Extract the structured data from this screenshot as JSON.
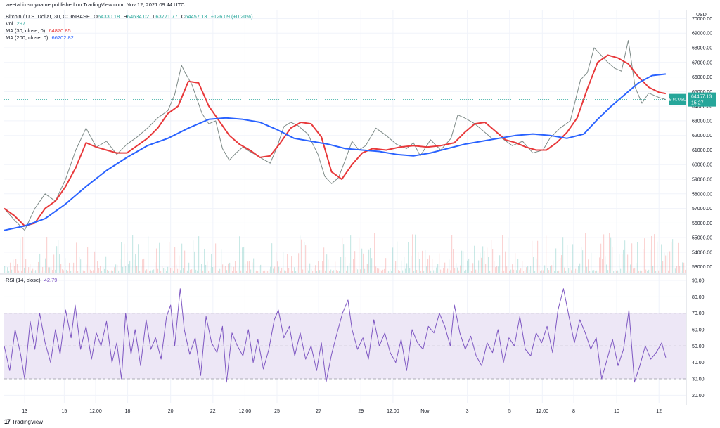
{
  "header": {
    "publisher": "weetabixismyname published on TradingView.com, Nov 12, 2021 09:44 UTC"
  },
  "footer": {
    "brand": "TradingView",
    "logo_glyph": "17"
  },
  "ticker": {
    "name": "Bitcoin / U.S. Dollar, 30, COINBASE",
    "open_label": "O",
    "open": "64330.18",
    "high_label": "H",
    "high": "64634.02",
    "low_label": "L",
    "low": "63771.77",
    "close_label": "C",
    "close": "64457.13",
    "change": "+126.09 (+0.20%)"
  },
  "indicators": {
    "vol_label": "Vol",
    "vol_value": "297",
    "ma30_label": "MA (30, close, 0)",
    "ma30_value": "64870.85",
    "ma200_label": "MA (200, close, 0)",
    "ma200_value": "66202.82",
    "rsi_label": "RSI (14, close)",
    "rsi_value": "42.79"
  },
  "price_badge": {
    "symbol": "BTCUSD",
    "price": "64457.13",
    "countdown": "15:27"
  },
  "colors": {
    "up": "#26a69a",
    "down": "#ef5350",
    "ma30": "#e8393b",
    "ma200": "#2962ff",
    "rsi": "#7e57c2",
    "rsi_band": "#ede7f6",
    "grid": "#f0f3fa",
    "axis_text": "#131722"
  },
  "chart_data": {
    "type": "line",
    "title": "Bitcoin / U.S. Dollar, 30, COINBASE",
    "price_axis": {
      "currency": "USD",
      "ylim": [
        52600,
        70600
      ],
      "ticks": [
        "53000.00",
        "54000.00",
        "55000.00",
        "56000.00",
        "57000.00",
        "58000.00",
        "59000.00",
        "60000.00",
        "61000.00",
        "62000.00",
        "63000.00",
        "64000.00",
        "65000.00",
        "66000.00",
        "67000.00",
        "68000.00",
        "69000.00",
        "70000.00"
      ]
    },
    "rsi_axis": {
      "ylim": [
        15,
        93
      ],
      "ticks": [
        "20.00",
        "30.00",
        "40.00",
        "50.00",
        "60.00",
        "70.00",
        "80.00",
        "90.00"
      ],
      "band": [
        30,
        70
      ]
    },
    "x_axis": {
      "range": [
        0,
        1000
      ],
      "ticks": [
        {
          "x": 30,
          "label": "13"
        },
        {
          "x": 88,
          "label": "15"
        },
        {
          "x": 134,
          "label": "12:00"
        },
        {
          "x": 181,
          "label": "18"
        },
        {
          "x": 244,
          "label": "20"
        },
        {
          "x": 306,
          "label": "22"
        },
        {
          "x": 353,
          "label": "12:00"
        },
        {
          "x": 400,
          "label": "25"
        },
        {
          "x": 461,
          "label": "27"
        },
        {
          "x": 523,
          "label": "29"
        },
        {
          "x": 570,
          "label": "12:00"
        },
        {
          "x": 617,
          "label": "Nov"
        },
        {
          "x": 679,
          "label": "3"
        },
        {
          "x": 741,
          "label": "5"
        },
        {
          "x": 789,
          "label": "12:00"
        },
        {
          "x": 835,
          "label": "8"
        },
        {
          "x": 898,
          "label": "10"
        },
        {
          "x": 960,
          "label": "12"
        }
      ]
    },
    "series": [
      {
        "name": "BTCUSD close (approx.)",
        "x": [
          0,
          15,
          30,
          45,
          60,
          75,
          90,
          105,
          120,
          135,
          150,
          165,
          180,
          195,
          210,
          225,
          240,
          250,
          260,
          265,
          275,
          290,
          300,
          310,
          320,
          330,
          340,
          350,
          360,
          375,
          390,
          400,
          410,
          420,
          430,
          445,
          460,
          470,
          480,
          490,
          500,
          510,
          520,
          530,
          545,
          560,
          575,
          590,
          600,
          610,
          625,
          640,
          655,
          665,
          675,
          690,
          700,
          715,
          730,
          745,
          760,
          775,
          790,
          800,
          815,
          830,
          845,
          855,
          865,
          875,
          885,
          895,
          905,
          915,
          925,
          935,
          945,
          960,
          970
        ],
        "values": [
          57000,
          56200,
          55500,
          57000,
          58000,
          57500,
          59000,
          61000,
          62500,
          61200,
          61600,
          60700,
          61400,
          61900,
          62500,
          63200,
          63700,
          64800,
          66800,
          66300,
          65500,
          63500,
          62800,
          63000,
          61100,
          60300,
          60800,
          61200,
          60900,
          60500,
          60100,
          61200,
          62600,
          62900,
          62700,
          62100,
          60700,
          59200,
          58700,
          59100,
          60300,
          61600,
          61000,
          61300,
          62500,
          62000,
          61400,
          61100,
          61500,
          60600,
          61700,
          61000,
          61800,
          63400,
          63200,
          62800,
          62400,
          61800,
          61800,
          61300,
          61600,
          60800,
          61000,
          61800,
          62500,
          63000,
          65800,
          66300,
          68000,
          67500,
          67000,
          66600,
          66400,
          68500,
          65300,
          64200,
          64900,
          64600,
          64457
        ]
      },
      {
        "name": "MA (30, close, 0)",
        "x": [
          0,
          15,
          30,
          45,
          60,
          75,
          90,
          105,
          120,
          135,
          150,
          165,
          180,
          195,
          210,
          225,
          240,
          255,
          270,
          285,
          300,
          315,
          330,
          345,
          360,
          375,
          390,
          405,
          420,
          435,
          450,
          465,
          480,
          495,
          510,
          525,
          540,
          560,
          580,
          600,
          620,
          640,
          660,
          675,
          690,
          705,
          720,
          735,
          750,
          765,
          780,
          795,
          810,
          825,
          840,
          855,
          870,
          885,
          900,
          915,
          930,
          945,
          960,
          970
        ],
        "values": [
          57000,
          56500,
          55800,
          56000,
          57000,
          57500,
          58500,
          59800,
          61500,
          61200,
          61000,
          60800,
          60800,
          61300,
          61800,
          62500,
          63500,
          64000,
          65700,
          65600,
          64000,
          63000,
          62000,
          61400,
          61000,
          60500,
          60600,
          61500,
          62500,
          62900,
          62800,
          61900,
          59500,
          59000,
          60000,
          60800,
          61100,
          61000,
          61200,
          61300,
          61200,
          61300,
          61500,
          62200,
          62800,
          62900,
          62300,
          61700,
          61500,
          61200,
          61000,
          61000,
          61500,
          62200,
          63200,
          65200,
          67000,
          67500,
          67300,
          66900,
          66000,
          65300,
          64950,
          64870
        ]
      },
      {
        "name": "MA (200, close, 0)",
        "x": [
          0,
          30,
          60,
          90,
          120,
          150,
          180,
          210,
          240,
          270,
          300,
          325,
          350,
          375,
          400,
          425,
          450,
          475,
          500,
          525,
          550,
          575,
          600,
          625,
          650,
          675,
          700,
          725,
          750,
          775,
          800,
          825,
          850,
          870,
          890,
          910,
          930,
          950,
          970
        ],
        "values": [
          55500,
          55800,
          56300,
          57300,
          58500,
          59600,
          60500,
          61300,
          61800,
          62500,
          63100,
          63200,
          63100,
          62900,
          62400,
          61800,
          61600,
          61400,
          61100,
          61000,
          60900,
          60700,
          60600,
          60800,
          61100,
          61400,
          61600,
          61800,
          62000,
          62100,
          62000,
          61800,
          62100,
          63100,
          64000,
          64800,
          65600,
          66100,
          66200
        ]
      },
      {
        "name": "RSI (14, close)",
        "x": [
          0,
          8,
          16,
          24,
          30,
          38,
          45,
          52,
          60,
          68,
          75,
          82,
          90,
          98,
          104,
          112,
          120,
          128,
          135,
          142,
          150,
          158,
          165,
          172,
          178,
          186,
          192,
          200,
          208,
          215,
          222,
          230,
          238,
          244,
          250,
          258,
          264,
          272,
          280,
          288,
          296,
          304,
          312,
          320,
          326,
          334,
          342,
          350,
          358,
          365,
          372,
          380,
          388,
          396,
          402,
          410,
          418,
          426,
          434,
          442,
          450,
          458,
          465,
          472,
          480,
          488,
          496,
          504,
          510,
          518,
          526,
          534,
          542,
          550,
          558,
          566,
          574,
          582,
          590,
          598,
          606,
          614,
          622,
          630,
          638,
          646,
          654,
          660,
          668,
          676,
          684,
          692,
          700,
          708,
          716,
          724,
          732,
          740,
          748,
          756,
          764,
          772,
          780,
          788,
          796,
          804,
          812,
          820,
          828,
          836,
          844,
          852,
          860,
          868,
          876,
          884,
          892,
          900,
          908,
          916,
          924,
          932,
          940,
          948,
          956,
          964,
          970
        ],
        "values": [
          50,
          35,
          60,
          45,
          30,
          65,
          48,
          70,
          52,
          40,
          60,
          45,
          72,
          55,
          75,
          48,
          62,
          42,
          58,
          50,
          65,
          40,
          52,
          30,
          70,
          45,
          60,
          38,
          66,
          48,
          55,
          42,
          68,
          75,
          50,
          85,
          60,
          45,
          55,
          32,
          68,
          52,
          46,
          62,
          28,
          58,
          50,
          44,
          60,
          40,
          54,
          36,
          48,
          66,
          72,
          55,
          62,
          44,
          58,
          42,
          50,
          35,
          52,
          28,
          45,
          58,
          70,
          78,
          60,
          48,
          55,
          42,
          66,
          50,
          58,
          46,
          40,
          54,
          35,
          60,
          52,
          48,
          62,
          58,
          70,
          62,
          50,
          75,
          58,
          48,
          56,
          44,
          38,
          52,
          46,
          60,
          40,
          55,
          50,
          68,
          48,
          44,
          58,
          52,
          62,
          46,
          72,
          85,
          68,
          52,
          66,
          58,
          48,
          55,
          30,
          42,
          54,
          38,
          48,
          72,
          28,
          38,
          50,
          42,
          46,
          52,
          43
        ]
      }
    ]
  }
}
